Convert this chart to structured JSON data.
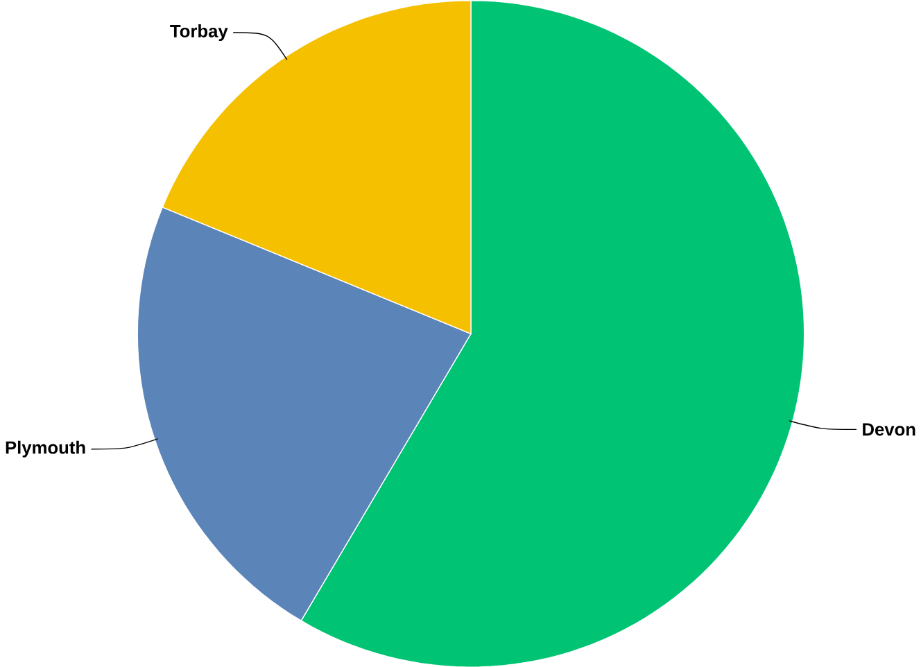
{
  "chart_data": {
    "type": "pie",
    "categories": [
      "Devon",
      "Plymouth",
      "Torbay"
    ],
    "values": [
      58.5,
      22.7,
      18.8
    ],
    "colors": [
      "#00c373",
      "#5b84b8",
      "#f5c000"
    ]
  }
}
